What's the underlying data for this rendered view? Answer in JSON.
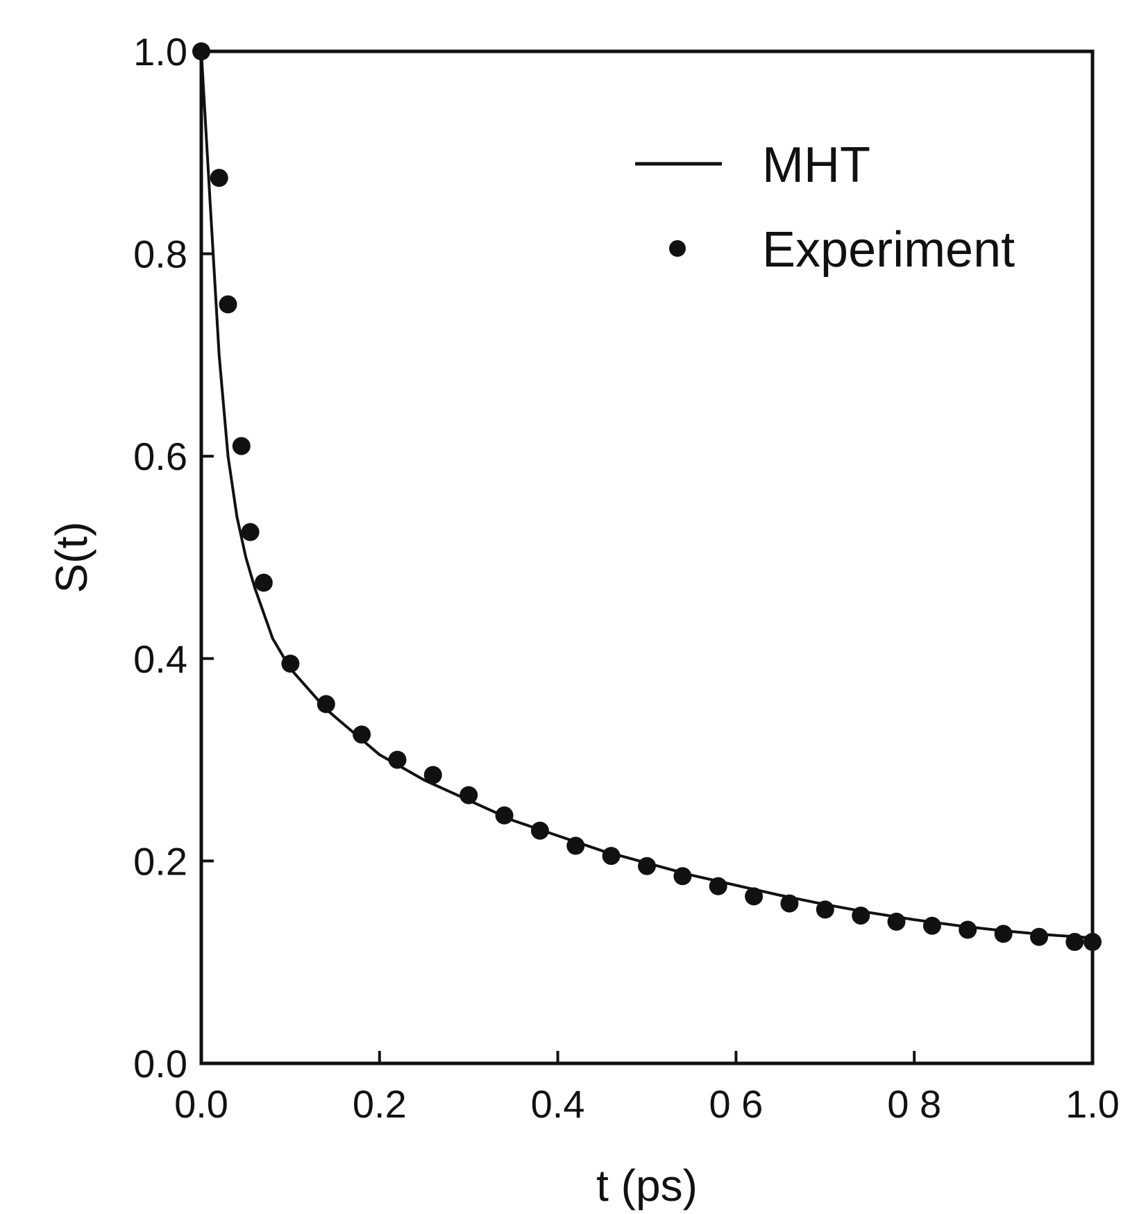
{
  "chart_data": {
    "type": "line",
    "title": "",
    "xlabel": "t  (ps)",
    "ylabel": "S(t)",
    "xlim": [
      0.0,
      1.0
    ],
    "ylim": [
      0.0,
      1.0
    ],
    "grid": false,
    "legend_position": "top-right",
    "x_ticks": [
      "0.0",
      "0.2",
      "0.4",
      "0 6",
      "0 8",
      "1.0"
    ],
    "x_tick_values": [
      0.0,
      0.2,
      0.4,
      0.6,
      0.8,
      1.0
    ],
    "y_ticks": [
      "0.0",
      "0.2",
      "0.4",
      "0.6",
      "0.8",
      "1.0"
    ],
    "y_tick_values": [
      0.0,
      0.2,
      0.4,
      0.6,
      0.8,
      1.0
    ],
    "series": [
      {
        "name": "MHT",
        "style": "line",
        "color": "#111111",
        "x": [
          0.0,
          0.01,
          0.02,
          0.03,
          0.04,
          0.05,
          0.06,
          0.08,
          0.1,
          0.12,
          0.14,
          0.16,
          0.18,
          0.2,
          0.25,
          0.3,
          0.35,
          0.4,
          0.45,
          0.5,
          0.55,
          0.6,
          0.65,
          0.7,
          0.75,
          0.8,
          0.85,
          0.9,
          0.95,
          1.0
        ],
        "y": [
          1.0,
          0.85,
          0.7,
          0.6,
          0.54,
          0.5,
          0.47,
          0.42,
          0.39,
          0.37,
          0.35,
          0.335,
          0.32,
          0.305,
          0.28,
          0.26,
          0.24,
          0.225,
          0.21,
          0.198,
          0.186,
          0.176,
          0.166,
          0.157,
          0.149,
          0.142,
          0.136,
          0.131,
          0.127,
          0.124
        ]
      },
      {
        "name": "Experiment",
        "style": "markers",
        "color": "#111111",
        "x": [
          0.0,
          0.02,
          0.03,
          0.045,
          0.055,
          0.07,
          0.1,
          0.14,
          0.18,
          0.22,
          0.26,
          0.3,
          0.34,
          0.38,
          0.42,
          0.46,
          0.5,
          0.54,
          0.58,
          0.62,
          0.66,
          0.7,
          0.74,
          0.78,
          0.82,
          0.86,
          0.9,
          0.94,
          0.98,
          1.0
        ],
        "y": [
          1.0,
          0.875,
          0.75,
          0.61,
          0.525,
          0.475,
          0.395,
          0.355,
          0.325,
          0.3,
          0.285,
          0.265,
          0.245,
          0.23,
          0.215,
          0.205,
          0.195,
          0.185,
          0.175,
          0.165,
          0.158,
          0.152,
          0.146,
          0.14,
          0.136,
          0.132,
          0.128,
          0.125,
          0.12,
          0.12
        ]
      }
    ]
  }
}
